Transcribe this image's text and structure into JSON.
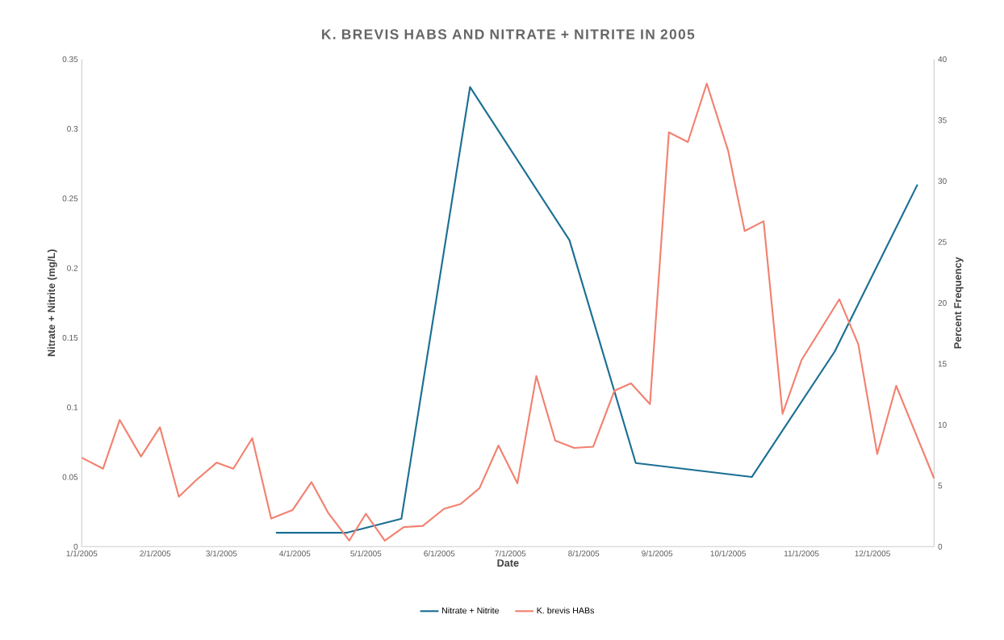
{
  "chart_data": {
    "type": "line",
    "title": "K. BREVIS HABS AND NITRATE + NITRITE IN 2005",
    "xlabel": "Date",
    "ylabel": "Nitrate + Nitrite (mg/L)",
    "y2label": "Percent Frequency",
    "xlim": [
      "2005-01-01",
      "2005-12-27"
    ],
    "xticks": [
      {
        "value": "2005-01-01",
        "label": "1/1/2005"
      },
      {
        "value": "2005-02-01",
        "label": "2/1/2005"
      },
      {
        "value": "2005-03-01",
        "label": "3/1/2005"
      },
      {
        "value": "2005-04-01",
        "label": "4/1/2005"
      },
      {
        "value": "2005-05-01",
        "label": "5/1/2005"
      },
      {
        "value": "2005-06-01",
        "label": "6/1/2005"
      },
      {
        "value": "2005-07-01",
        "label": "7/1/2005"
      },
      {
        "value": "2005-08-01",
        "label": "8/1/2005"
      },
      {
        "value": "2005-09-01",
        "label": "9/1/2005"
      },
      {
        "value": "2005-10-01",
        "label": "10/1/2005"
      },
      {
        "value": "2005-11-01",
        "label": "11/1/2005"
      },
      {
        "value": "2005-12-01",
        "label": "12/1/2005"
      }
    ],
    "ylim": [
      0,
      0.35
    ],
    "yticks": [
      0,
      0.05,
      0.1,
      0.15,
      0.2,
      0.25,
      0.3,
      0.35
    ],
    "y2lim": [
      0,
      40
    ],
    "y2ticks": [
      0,
      5,
      10,
      15,
      20,
      25,
      30,
      35,
      40
    ],
    "legend": "bottom",
    "line_style": "solid",
    "series": [
      {
        "name": "Nitrate + Nitrite",
        "color": "#1b6f93",
        "axis": "y",
        "x": [
          "2005-03-24",
          "2005-04-23",
          "2005-05-16",
          "2005-06-14",
          "2005-07-26",
          "2005-08-23",
          "2005-10-11",
          "2005-11-15",
          "2005-12-20"
        ],
        "values": [
          0.01,
          0.01,
          0.02,
          0.33,
          0.22,
          0.06,
          0.05,
          0.14,
          0.26
        ]
      },
      {
        "name": "K. brevis HABs",
        "color": "#f28170",
        "axis": "y2",
        "x": [
          "2005-01-01",
          "2005-01-10",
          "2005-01-17",
          "2005-01-26",
          "2005-02-03",
          "2005-02-11",
          "2005-02-18",
          "2005-02-27",
          "2005-03-06",
          "2005-03-14",
          "2005-03-22",
          "2005-03-31",
          "2005-04-08",
          "2005-04-15",
          "2005-04-24",
          "2005-05-01",
          "2005-05-09",
          "2005-05-17",
          "2005-05-25",
          "2005-06-03",
          "2005-06-10",
          "2005-06-18",
          "2005-06-26",
          "2005-07-04",
          "2005-07-12",
          "2005-07-20",
          "2005-07-28",
          "2005-08-05",
          "2005-08-14",
          "2005-08-21",
          "2005-08-29",
          "2005-09-06",
          "2005-09-14",
          "2005-09-22",
          "2005-10-01",
          "2005-10-08",
          "2005-10-16",
          "2005-10-24",
          "2005-11-01",
          "2005-11-17",
          "2005-11-25",
          "2005-12-03",
          "2005-12-11",
          "2005-12-27"
        ],
        "values": [
          7.3,
          6.4,
          10.4,
          7.4,
          9.8,
          4.1,
          5.4,
          6.9,
          6.4,
          8.9,
          2.3,
          3.0,
          5.3,
          2.8,
          0.5,
          2.7,
          0.5,
          1.6,
          1.7,
          3.1,
          3.5,
          4.8,
          8.3,
          5.2,
          14.0,
          8.7,
          8.1,
          8.2,
          12.8,
          13.4,
          11.7,
          34.0,
          33.2,
          38.0,
          32.5,
          25.9,
          26.7,
          10.9,
          15.3,
          20.3,
          16.6,
          7.6,
          13.2,
          5.6
        ]
      }
    ]
  }
}
